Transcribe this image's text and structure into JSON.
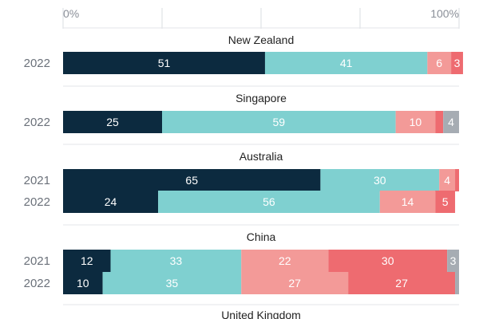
{
  "colors": {
    "very_confident": "#0c2a3f",
    "somewhat_confident": "#7fd0d0",
    "not_very_confident": "#f39a98",
    "not_at_all": "#ee6b70",
    "dont_know": "#a6acb3",
    "gridline": "#d9dce0",
    "divider": "#e3e5e8"
  },
  "chart_data": {
    "type": "bar",
    "orientation": "horizontal",
    "stacked": true,
    "xlim": [
      0,
      100
    ],
    "x_tick_labels": [
      "0%",
      "100%"
    ],
    "groups": [
      {
        "title": "New Zealand",
        "rows": [
          {
            "year": "2022",
            "values": [
              51,
              41,
              6,
              3,
              0
            ]
          }
        ]
      },
      {
        "title": "Singapore",
        "rows": [
          {
            "year": "2022",
            "values": [
              25,
              59,
              10,
              2,
              4
            ]
          }
        ]
      },
      {
        "title": "Australia",
        "rows": [
          {
            "year": "2021",
            "values": [
              65,
              30,
              4,
              1,
              0
            ]
          },
          {
            "year": "2022",
            "values": [
              24,
              56,
              14,
              5,
              0
            ]
          }
        ]
      },
      {
        "title": "China",
        "rows": [
          {
            "year": "2021",
            "values": [
              12,
              33,
              22,
              30,
              3
            ]
          },
          {
            "year": "2022",
            "values": [
              10,
              35,
              27,
              27,
              1
            ]
          }
        ]
      },
      {
        "title": "United Kingdom",
        "rows": []
      }
    ]
  }
}
